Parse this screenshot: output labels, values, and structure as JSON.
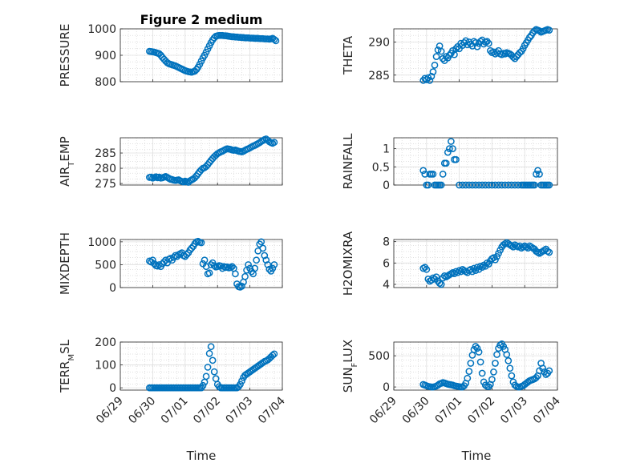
{
  "figure_title": "Figure 2 medium",
  "marker_color": "#0072bd",
  "grid": true,
  "x_tick_labels": [
    "06/29",
    "06/30",
    "07/01",
    "07/02",
    "07/03",
    "07/04"
  ],
  "x_axis_label": "Time",
  "chart_data": [
    {
      "type": "scatter",
      "title": "Figure 2 medium",
      "ylabel": "PRESSURE",
      "ylim": [
        800,
        1000
      ],
      "yticks": [
        800,
        900,
        1000
      ],
      "xlim": [
        0,
        5
      ],
      "x": [
        0.9,
        0.95,
        1.0,
        1.05,
        1.1,
        1.15,
        1.2,
        1.25,
        1.3,
        1.35,
        1.4,
        1.45,
        1.5,
        1.55,
        1.6,
        1.65,
        1.7,
        1.75,
        1.8,
        1.85,
        1.9,
        1.95,
        2.0,
        2.05,
        2.1,
        2.15,
        2.2,
        2.25,
        2.3,
        2.35,
        2.4,
        2.45,
        2.5,
        2.55,
        2.6,
        2.65,
        2.7,
        2.75,
        2.8,
        2.85,
        2.9,
        2.95,
        3.0,
        3.05,
        3.1,
        3.15,
        3.2,
        3.25,
        3.3,
        3.35,
        3.4,
        3.45,
        3.5,
        3.55,
        3.6,
        3.65,
        3.7,
        3.75,
        3.8,
        3.85,
        3.9,
        3.95,
        4.0,
        4.05,
        4.1,
        4.15,
        4.2,
        4.25,
        4.3,
        4.35,
        4.4,
        4.45,
        4.5,
        4.55,
        4.6,
        4.65,
        4.7,
        4.75,
        4.8
      ],
      "y": [
        915,
        914,
        913,
        912,
        910,
        908,
        906,
        900,
        892,
        885,
        878,
        872,
        868,
        866,
        864,
        862,
        860,
        857,
        854,
        851,
        848,
        845,
        842,
        840,
        838,
        837,
        836,
        838,
        840,
        846,
        855,
        866,
        878,
        890,
        900,
        912,
        924,
        936,
        948,
        958,
        966,
        972,
        974,
        975,
        975,
        975,
        974,
        974,
        973,
        972,
        971,
        970,
        970,
        969,
        969,
        968,
        968,
        967,
        967,
        966,
        966,
        966,
        965,
        965,
        965,
        964,
        964,
        964,
        963,
        963,
        963,
        962,
        962,
        962,
        961,
        962,
        964,
        960,
        955
      ],
      "series_name": ""
    },
    {
      "type": "scatter",
      "ylabel": "THETA",
      "ylim": [
        284,
        292
      ],
      "yticks": [
        285,
        290
      ],
      "xlim": [
        0,
        5
      ],
      "x": [
        0.9,
        0.95,
        1.0,
        1.05,
        1.1,
        1.15,
        1.2,
        1.25,
        1.3,
        1.35,
        1.4,
        1.45,
        1.5,
        1.55,
        1.6,
        1.65,
        1.7,
        1.75,
        1.8,
        1.85,
        1.9,
        1.95,
        2.0,
        2.05,
        2.1,
        2.15,
        2.2,
        2.25,
        2.3,
        2.35,
        2.4,
        2.45,
        2.5,
        2.55,
        2.6,
        2.65,
        2.7,
        2.75,
        2.8,
        2.85,
        2.9,
        2.95,
        3.0,
        3.05,
        3.1,
        3.15,
        3.2,
        3.25,
        3.3,
        3.35,
        3.4,
        3.45,
        3.5,
        3.55,
        3.6,
        3.65,
        3.7,
        3.75,
        3.8,
        3.85,
        3.9,
        3.95,
        4.0,
        4.05,
        4.1,
        4.15,
        4.2,
        4.25,
        4.3,
        4.35,
        4.4,
        4.45,
        4.5,
        4.55,
        4.6,
        4.65,
        4.7,
        4.75
      ],
      "y": [
        284.2,
        284.5,
        284.3,
        284.6,
        284.2,
        284.8,
        285.5,
        286.5,
        287.8,
        288.8,
        289.4,
        288.6,
        287.5,
        287.2,
        287.8,
        287.6,
        288.0,
        288.3,
        288.7,
        288.1,
        289.0,
        289.3,
        289.0,
        289.8,
        289.5,
        289.9,
        290.2,
        289.6,
        290.0,
        289.7,
        289.4,
        290.1,
        289.9,
        289.3,
        289.8,
        290.1,
        290.3,
        289.7,
        290.0,
        290.1,
        289.8,
        288.7,
        288.4,
        288.5,
        288.2,
        288.4,
        288.7,
        288.2,
        288.1,
        288.3,
        288.2,
        288.4,
        288.3,
        288.2,
        288.0,
        287.7,
        287.5,
        287.8,
        288.1,
        288.4,
        288.6,
        289.0,
        289.5,
        289.9,
        290.3,
        290.7,
        291.0,
        291.4,
        291.7,
        291.9,
        291.8,
        291.7,
        291.5,
        291.6,
        291.7,
        291.8,
        291.9,
        291.8
      ]
    },
    {
      "type": "scatter",
      "ylabel": "AIR_TEMP",
      "ylabel_main": "AIR",
      "ylabel_sub": "T",
      "ylabel_rest": "EMP",
      "ylim": [
        274.5,
        290
      ],
      "yticks": [
        275,
        280,
        285
      ],
      "xlim": [
        0,
        5
      ],
      "x": [
        0.9,
        0.95,
        1.0,
        1.05,
        1.1,
        1.15,
        1.2,
        1.25,
        1.3,
        1.35,
        1.4,
        1.45,
        1.5,
        1.55,
        1.6,
        1.65,
        1.7,
        1.75,
        1.8,
        1.85,
        1.9,
        1.95,
        2.0,
        2.05,
        2.1,
        2.15,
        2.2,
        2.25,
        2.3,
        2.35,
        2.4,
        2.45,
        2.5,
        2.55,
        2.6,
        2.65,
        2.7,
        2.75,
        2.8,
        2.85,
        2.9,
        2.95,
        3.0,
        3.05,
        3.1,
        3.15,
        3.2,
        3.25,
        3.3,
        3.35,
        3.4,
        3.45,
        3.5,
        3.55,
        3.6,
        3.65,
        3.7,
        3.75,
        3.8,
        3.85,
        3.9,
        3.95,
        4.0,
        4.05,
        4.1,
        4.15,
        4.2,
        4.25,
        4.3,
        4.35,
        4.4,
        4.45,
        4.5,
        4.55,
        4.6,
        4.65,
        4.7,
        4.75
      ],
      "y": [
        277.0,
        277.1,
        276.8,
        277.0,
        277.2,
        276.9,
        277.1,
        276.8,
        276.9,
        277.1,
        277.3,
        277.0,
        276.7,
        276.4,
        276.3,
        276.1,
        276.0,
        276.1,
        276.2,
        275.9,
        275.7,
        275.5,
        275.8,
        275.6,
        275.4,
        275.9,
        276.2,
        276.5,
        276.9,
        277.5,
        278.2,
        278.9,
        279.5,
        280.0,
        280.2,
        280.6,
        281.2,
        281.9,
        282.6,
        283.2,
        283.8,
        284.3,
        284.8,
        285.1,
        285.4,
        285.6,
        285.9,
        286.2,
        286.4,
        286.3,
        286.2,
        286.0,
        285.9,
        286.0,
        285.8,
        285.6,
        285.5,
        285.4,
        285.6,
        285.9,
        286.2,
        286.4,
        286.7,
        287.0,
        287.3,
        287.5,
        287.8,
        288.1,
        288.4,
        288.8,
        289.1,
        289.4,
        289.6,
        289.2,
        288.7,
        288.4,
        288.2,
        288.5
      ]
    },
    {
      "type": "scatter",
      "ylabel": "RAINFALL",
      "ylim": [
        0,
        1.3
      ],
      "yticks": [
        0,
        0.5,
        1
      ],
      "xlim": [
        0,
        5
      ],
      "x": [
        0.9,
        0.95,
        1.0,
        1.05,
        1.1,
        1.15,
        1.2,
        1.25,
        1.3,
        1.35,
        1.4,
        1.45,
        1.5,
        1.55,
        1.6,
        1.65,
        1.7,
        1.75,
        1.8,
        1.85,
        1.9,
        2.0,
        2.1,
        2.2,
        2.3,
        2.4,
        2.5,
        2.6,
        2.7,
        2.8,
        2.9,
        3.0,
        3.1,
        3.2,
        3.3,
        3.4,
        3.5,
        3.6,
        3.7,
        3.8,
        3.9,
        3.95,
        4.0,
        4.05,
        4.1,
        4.15,
        4.2,
        4.25,
        4.3,
        4.35,
        4.4,
        4.45,
        4.5,
        4.55,
        4.6,
        4.65,
        4.7,
        4.75
      ],
      "y": [
        0.4,
        0.3,
        0.0,
        0.0,
        0.3,
        0.3,
        0.3,
        0.0,
        0.0,
        0.0,
        0.0,
        0.0,
        0.3,
        0.6,
        0.6,
        0.9,
        1.0,
        1.2,
        1.0,
        0.7,
        0.7,
        0.0,
        0.0,
        0.0,
        0.0,
        0.0,
        0.0,
        0.0,
        0.0,
        0.0,
        0.0,
        0.0,
        0.0,
        0.0,
        0.0,
        0.0,
        0.0,
        0.0,
        0.0,
        0.0,
        0.0,
        0.0,
        0.0,
        0.0,
        0.0,
        0.0,
        0.0,
        0.0,
        0.0,
        0.3,
        0.4,
        0.3,
        0.0,
        0.0,
        0.0,
        0.0,
        0.0,
        0.0
      ]
    },
    {
      "type": "scatter",
      "ylabel": "MIXDEPTH",
      "ylim": [
        0,
        1050
      ],
      "yticks": [
        0,
        500,
        1000
      ],
      "xlim": [
        0,
        5
      ],
      "x": [
        0.9,
        0.95,
        1.0,
        1.05,
        1.1,
        1.15,
        1.2,
        1.25,
        1.3,
        1.35,
        1.4,
        1.45,
        1.5,
        1.55,
        1.6,
        1.65,
        1.7,
        1.75,
        1.8,
        1.85,
        1.9,
        1.95,
        2.0,
        2.05,
        2.1,
        2.15,
        2.2,
        2.25,
        2.3,
        2.35,
        2.4,
        2.45,
        2.5,
        2.55,
        2.6,
        2.65,
        2.7,
        2.75,
        2.8,
        2.85,
        2.9,
        2.95,
        3.0,
        3.05,
        3.1,
        3.15,
        3.2,
        3.25,
        3.3,
        3.35,
        3.4,
        3.45,
        3.5,
        3.55,
        3.6,
        3.65,
        3.7,
        3.75,
        3.8,
        3.85,
        3.9,
        3.95,
        4.0,
        4.05,
        4.1,
        4.15,
        4.2,
        4.25,
        4.3,
        4.35,
        4.4,
        4.45,
        4.5,
        4.55,
        4.6,
        4.65,
        4.7,
        4.75
      ],
      "y": [
        580,
        560,
        600,
        520,
        480,
        470,
        500,
        460,
        520,
        560,
        600,
        540,
        620,
        640,
        600,
        660,
        700,
        680,
        720,
        740,
        760,
        700,
        680,
        720,
        760,
        820,
        860,
        900,
        960,
        1000,
        1010,
        990,
        980,
        520,
        600,
        460,
        300,
        320,
        500,
        540,
        480,
        450,
        460,
        480,
        470,
        420,
        460,
        440,
        450,
        430,
        440,
        460,
        420,
        300,
        80,
        20,
        10,
        30,
        120,
        240,
        380,
        500,
        420,
        350,
        300,
        420,
        600,
        800,
        950,
        1000,
        860,
        700,
        600,
        500,
        400,
        360,
        420,
        500
      ]
    },
    {
      "type": "scatter",
      "ylabel": "H2OMIXRA",
      "ylim": [
        3.7,
        8.2
      ],
      "yticks": [
        4,
        6,
        8
      ],
      "xlim": [
        0,
        5
      ],
      "x": [
        0.9,
        0.95,
        1.0,
        1.05,
        1.1,
        1.15,
        1.2,
        1.25,
        1.3,
        1.35,
        1.4,
        1.45,
        1.5,
        1.55,
        1.6,
        1.65,
        1.7,
        1.75,
        1.8,
        1.85,
        1.9,
        1.95,
        2.0,
        2.05,
        2.1,
        2.15,
        2.2,
        2.25,
        2.3,
        2.35,
        2.4,
        2.45,
        2.5,
        2.55,
        2.6,
        2.65,
        2.7,
        2.75,
        2.8,
        2.85,
        2.9,
        2.95,
        3.0,
        3.05,
        3.1,
        3.15,
        3.2,
        3.25,
        3.3,
        3.35,
        3.4,
        3.45,
        3.5,
        3.55,
        3.6,
        3.65,
        3.7,
        3.75,
        3.8,
        3.85,
        3.9,
        3.95,
        4.0,
        4.05,
        4.1,
        4.15,
        4.2,
        4.25,
        4.3,
        4.35,
        4.4,
        4.45,
        4.5,
        4.55,
        4.6,
        4.65,
        4.7,
        4.75
      ],
      "y": [
        5.5,
        5.6,
        5.4,
        4.5,
        4.3,
        4.4,
        4.6,
        4.5,
        4.7,
        4.3,
        4.1,
        4.0,
        4.6,
        4.8,
        4.7,
        4.8,
        4.9,
        5.0,
        5.1,
        5.0,
        5.2,
        5.1,
        5.3,
        5.2,
        5.4,
        5.3,
        5.2,
        5.1,
        5.3,
        5.4,
        5.2,
        5.5,
        5.3,
        5.6,
        5.4,
        5.7,
        5.6,
        5.8,
        5.7,
        6.0,
        5.9,
        6.2,
        6.4,
        6.5,
        6.3,
        6.6,
        6.9,
        7.2,
        7.5,
        7.7,
        7.8,
        7.9,
        7.8,
        7.7,
        7.6,
        7.5,
        7.7,
        7.6,
        7.5,
        7.6,
        7.4,
        7.5,
        7.6,
        7.5,
        7.4,
        7.6,
        7.5,
        7.4,
        7.3,
        7.1,
        7.0,
        6.9,
        7.0,
        7.1,
        7.2,
        7.3,
        7.1,
        7.0
      ]
    },
    {
      "type": "scatter",
      "ylabel": "TERR_MSL",
      "ylabel_main": "TERR",
      "ylabel_sub": "M",
      "ylabel_rest": "SL",
      "ylim": [
        -10,
        200
      ],
      "yticks": [
        0,
        100,
        200
      ],
      "xlim": [
        0,
        5
      ],
      "x": [
        0.9,
        0.95,
        1.0,
        1.05,
        1.1,
        1.15,
        1.2,
        1.25,
        1.3,
        1.35,
        1.4,
        1.45,
        1.5,
        1.55,
        1.6,
        1.65,
        1.7,
        1.75,
        1.8,
        1.85,
        1.9,
        1.95,
        2.0,
        2.05,
        2.1,
        2.15,
        2.2,
        2.25,
        2.3,
        2.35,
        2.4,
        2.45,
        2.5,
        2.55,
        2.6,
        2.65,
        2.7,
        2.75,
        2.8,
        2.85,
        2.9,
        2.95,
        3.0,
        3.05,
        3.1,
        3.15,
        3.2,
        3.25,
        3.3,
        3.35,
        3.4,
        3.45,
        3.5,
        3.55,
        3.6,
        3.65,
        3.7,
        3.75,
        3.8,
        3.85,
        3.9,
        3.95,
        4.0,
        4.05,
        4.1,
        4.15,
        4.2,
        4.25,
        4.3,
        4.35,
        4.4,
        4.45,
        4.5,
        4.55,
        4.6,
        4.65,
        4.7,
        4.75
      ],
      "y": [
        0,
        0,
        0,
        0,
        0,
        0,
        0,
        0,
        0,
        0,
        0,
        0,
        0,
        0,
        0,
        0,
        0,
        0,
        0,
        0,
        0,
        0,
        0,
        0,
        0,
        0,
        0,
        0,
        0,
        0,
        0,
        0,
        0,
        10,
        25,
        50,
        90,
        150,
        180,
        120,
        70,
        40,
        15,
        5,
        0,
        0,
        0,
        0,
        0,
        0,
        0,
        0,
        0,
        0,
        0,
        5,
        15,
        30,
        45,
        55,
        60,
        65,
        70,
        75,
        80,
        85,
        90,
        95,
        100,
        105,
        110,
        115,
        118,
        122,
        128,
        135,
        142,
        148
      ]
    },
    {
      "type": "scatter",
      "ylabel": "SUN_FLUX",
      "ylabel_main": "SUN",
      "ylabel_sub": "F",
      "ylabel_rest": "LUX",
      "ylim": [
        -50,
        720
      ],
      "yticks": [
        0,
        500
      ],
      "xlim": [
        0,
        5
      ],
      "x": [
        0.9,
        0.95,
        1.0,
        1.05,
        1.1,
        1.15,
        1.2,
        1.25,
        1.3,
        1.35,
        1.4,
        1.45,
        1.5,
        1.55,
        1.6,
        1.65,
        1.7,
        1.75,
        1.8,
        1.85,
        1.9,
        1.95,
        2.0,
        2.05,
        2.1,
        2.15,
        2.2,
        2.25,
        2.3,
        2.35,
        2.4,
        2.45,
        2.5,
        2.55,
        2.6,
        2.65,
        2.7,
        2.75,
        2.8,
        2.85,
        2.9,
        2.95,
        3.0,
        3.05,
        3.1,
        3.15,
        3.2,
        3.25,
        3.3,
        3.35,
        3.4,
        3.45,
        3.5,
        3.55,
        3.6,
        3.65,
        3.7,
        3.75,
        3.8,
        3.85,
        3.9,
        3.95,
        4.0,
        4.05,
        4.1,
        4.15,
        4.2,
        4.25,
        4.3,
        4.35,
        4.4,
        4.45,
        4.5,
        4.55,
        4.6,
        4.65,
        4.7,
        4.75
      ],
      "y": [
        40,
        30,
        20,
        10,
        5,
        0,
        0,
        5,
        15,
        30,
        50,
        60,
        70,
        65,
        55,
        45,
        40,
        35,
        30,
        20,
        15,
        10,
        5,
        0,
        0,
        20,
        60,
        140,
        250,
        380,
        510,
        600,
        650,
        620,
        560,
        400,
        220,
        80,
        30,
        10,
        5,
        40,
        120,
        240,
        380,
        520,
        620,
        670,
        690,
        650,
        600,
        520,
        420,
        300,
        180,
        80,
        30,
        10,
        0,
        0,
        10,
        20,
        40,
        60,
        80,
        100,
        110,
        120,
        130,
        150,
        180,
        260,
        380,
        300,
        240,
        200,
        220,
        260
      ]
    }
  ]
}
